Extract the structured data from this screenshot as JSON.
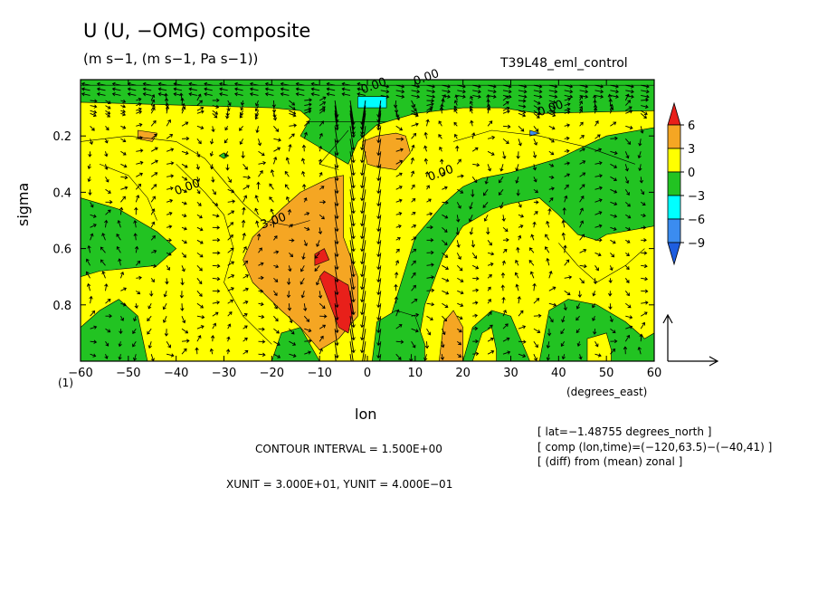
{
  "chart_data": {
    "type": "heatmap",
    "title": "U (U, −OMG) composite",
    "units": "(m s−1, (m s−1, Pa s−1))",
    "run": "T39L48_eml_control",
    "xlabel": "lon",
    "xunits": "(degrees_east)",
    "ylabel": "sigma",
    "level_index": "(1)",
    "xlim": [
      -60,
      60
    ],
    "ylim": [
      1.0,
      0.0
    ],
    "x_ticks": [
      "−60",
      "−50",
      "−40",
      "−30",
      "−20",
      "−10",
      "0",
      "10",
      "20",
      "30",
      "40",
      "50",
      "60"
    ],
    "y_ticks": [
      "0.2",
      "0.4",
      "0.6",
      "0.8"
    ],
    "colorbar": {
      "labels": [
        "6",
        "3",
        "0",
        "−3",
        "−6",
        "−9"
      ],
      "levels": [
        9,
        6,
        3,
        0,
        -3,
        -6,
        -9,
        -12
      ],
      "colors": [
        "#e8201a",
        "#f5a623",
        "#ffff00",
        "#22c322",
        "#00ffff",
        "#3b8cf0",
        "#1e5ee0"
      ]
    },
    "contour_labels": [
      "0.00",
      "0.00",
      "0.00",
      "0.00",
      "0.00",
      "3.00"
    ],
    "contour_interval_text": "CONTOUR INTERVAL = 1.500E+00",
    "unit_text": "XUNIT = 3.000E+01, YUNIT = 4.000E−01",
    "info": [
      "[ lat=−1.48755 degrees_north ]",
      "[ comp (lon,time)=(−120,63.5)−(−40,41) ]",
      "[ (diff) from (mean) zonal ]"
    ],
    "background": "#22c322"
  }
}
